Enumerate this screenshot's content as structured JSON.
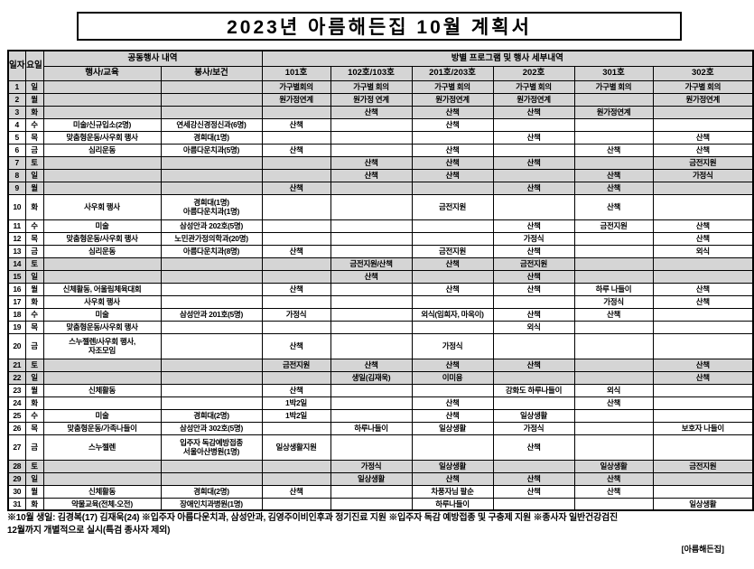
{
  "title": "2023년 아름해든집 10월 계획서",
  "table": {
    "corner_headers": {
      "date": "일자",
      "weekday": "요일"
    },
    "group_headers": {
      "common": "공동행사 내역",
      "rooms": "방별 프로그램 및 행사 세부내역"
    },
    "sub_headers": [
      "행사/교육",
      "봉사/보건",
      "101호",
      "102호/103호",
      "201호/203호",
      "202호",
      "301호",
      "302호"
    ],
    "rows": [
      {
        "date": 1,
        "weekday": "일",
        "highlight": true,
        "tall": false,
        "cells": [
          "",
          "",
          "가구별회의",
          "가구별 회의",
          "가구별 회의",
          "가구별 회의",
          "가구별 회의",
          "가구별 회의"
        ]
      },
      {
        "date": 2,
        "weekday": "월",
        "highlight": true,
        "tall": false,
        "cells": [
          "",
          "",
          "원가정연계",
          "원가정 연계",
          "원가정연계",
          "원가정연계",
          "",
          "원가정연계"
        ]
      },
      {
        "date": 3,
        "weekday": "화",
        "highlight": true,
        "tall": false,
        "cells": [
          "",
          "",
          "",
          "산책",
          "산책",
          "산책",
          "원가정연계",
          ""
        ]
      },
      {
        "date": 4,
        "weekday": "수",
        "highlight": false,
        "tall": false,
        "cells": [
          "미술/신규입소(2명)",
          "연세강신경정신과(6명)",
          "산책",
          "",
          "산책",
          "",
          "",
          ""
        ]
      },
      {
        "date": 5,
        "weekday": "목",
        "highlight": false,
        "tall": false,
        "cells": [
          "맞춤형운동/사우회 행사",
          "경희대(1명)",
          "",
          "",
          "",
          "산책",
          "",
          "산책"
        ]
      },
      {
        "date": 6,
        "weekday": "금",
        "highlight": false,
        "tall": false,
        "cells": [
          "심리운동",
          "아름다운치과(5명)",
          "산책",
          "",
          "산책",
          "",
          "산책",
          "산책"
        ]
      },
      {
        "date": 7,
        "weekday": "토",
        "highlight": true,
        "tall": false,
        "cells": [
          "",
          "",
          "",
          "산책",
          "산책",
          "산책",
          "",
          "금전지원"
        ]
      },
      {
        "date": 8,
        "weekday": "일",
        "highlight": true,
        "tall": false,
        "cells": [
          "",
          "",
          "",
          "산책",
          "산책",
          "",
          "산책",
          "가정식"
        ]
      },
      {
        "date": 9,
        "weekday": "월",
        "highlight": true,
        "tall": false,
        "cells": [
          "",
          "",
          "산책",
          "",
          "",
          "산책",
          "산책",
          ""
        ]
      },
      {
        "date": 10,
        "weekday": "화",
        "highlight": false,
        "tall": true,
        "cells": [
          "사우회 행사",
          "경희대(1명)\n아름다운치과(1명)",
          "",
          "",
          "금전지원",
          "",
          "산책",
          ""
        ]
      },
      {
        "date": 11,
        "weekday": "수",
        "highlight": false,
        "tall": false,
        "cells": [
          "미술",
          "삼성안과 202호(5명)",
          "",
          "",
          "",
          "산책",
          "금전지원",
          "산책"
        ]
      },
      {
        "date": 12,
        "weekday": "목",
        "highlight": false,
        "tall": false,
        "cells": [
          "맞춤형운동/사우회 행사",
          "노민관가정의학과(20명)",
          "",
          "",
          "",
          "가정식",
          "",
          "산책"
        ]
      },
      {
        "date": 13,
        "weekday": "금",
        "highlight": false,
        "tall": false,
        "cells": [
          "심리운동",
          "아름다운치과(8명)",
          "산책",
          "",
          "금전지원",
          "산책",
          "",
          "외식"
        ]
      },
      {
        "date": 14,
        "weekday": "토",
        "highlight": true,
        "tall": false,
        "cells": [
          "",
          "",
          "",
          "금전지원/산책",
          "산책",
          "금전지원",
          "",
          ""
        ]
      },
      {
        "date": 15,
        "weekday": "일",
        "highlight": true,
        "tall": false,
        "cells": [
          "",
          "",
          "",
          "산책",
          "",
          "산책",
          "",
          ""
        ]
      },
      {
        "date": 16,
        "weekday": "월",
        "highlight": false,
        "tall": false,
        "cells": [
          "신체활동, 어울림체육대회",
          "",
          "산책",
          "",
          "산책",
          "산책",
          "하루 나들이",
          "산책"
        ]
      },
      {
        "date": 17,
        "weekday": "화",
        "highlight": false,
        "tall": false,
        "cells": [
          "사우회 행사",
          "",
          "",
          "",
          "",
          "",
          "가정식",
          "산책"
        ]
      },
      {
        "date": 18,
        "weekday": "수",
        "highlight": false,
        "tall": false,
        "cells": [
          "미술",
          "삼성안과 201호(5명)",
          "가정식",
          "",
          "외식(임희자, 마옥이)",
          "산책",
          "산책",
          ""
        ]
      },
      {
        "date": 19,
        "weekday": "목",
        "highlight": false,
        "tall": false,
        "cells": [
          "맞춤형운동/사우회 행사",
          "",
          "",
          "",
          "",
          "외식",
          "",
          ""
        ]
      },
      {
        "date": 20,
        "weekday": "금",
        "highlight": false,
        "tall": true,
        "cells": [
          "스누젤렌/사우회 행사,\n자조모임",
          "",
          "산책",
          "",
          "가정식",
          "",
          "",
          ""
        ]
      },
      {
        "date": 21,
        "weekday": "토",
        "highlight": true,
        "tall": false,
        "cells": [
          "",
          "",
          "금전지원",
          "산책",
          "산책",
          "산책",
          "",
          "산책"
        ]
      },
      {
        "date": 22,
        "weekday": "일",
        "highlight": true,
        "tall": false,
        "cells": [
          "",
          "",
          "",
          "생일(김재욱)",
          "이미용",
          "",
          "",
          "산책"
        ]
      },
      {
        "date": 23,
        "weekday": "월",
        "highlight": false,
        "tall": false,
        "cells": [
          "신체활동",
          "",
          "산책",
          "",
          "",
          "강화도 하루나들이",
          "외식",
          ""
        ]
      },
      {
        "date": 24,
        "weekday": "화",
        "highlight": false,
        "tall": false,
        "cells": [
          "",
          "",
          "1박2일",
          "",
          "산책",
          "",
          "산책",
          ""
        ]
      },
      {
        "date": 25,
        "weekday": "수",
        "highlight": false,
        "tall": false,
        "cells": [
          "미술",
          "경희대(2명)",
          "1박2일",
          "",
          "산책",
          "일상생활",
          "",
          ""
        ]
      },
      {
        "date": 26,
        "weekday": "목",
        "highlight": false,
        "tall": false,
        "cells": [
          "맞춤형운동/가족나들이",
          "삼성안과 302호(5명)",
          "",
          "하루나들이",
          "일상생활",
          "가정식",
          "",
          "보호자 나들이"
        ]
      },
      {
        "date": 27,
        "weekday": "금",
        "highlight": false,
        "tall": true,
        "cells": [
          "스누젤렌",
          "입주자 독감예방접종\n서울아산병원(1명)",
          "일상생활지원",
          "",
          "",
          "산책",
          "",
          ""
        ]
      },
      {
        "date": 28,
        "weekday": "토",
        "highlight": true,
        "tall": false,
        "cells": [
          "",
          "",
          "",
          "가정식",
          "일상생활",
          "",
          "일상생활",
          "금전지원"
        ]
      },
      {
        "date": 29,
        "weekday": "일",
        "highlight": true,
        "tall": false,
        "cells": [
          "",
          "",
          "",
          "일상생활",
          "산책",
          "산책",
          "산책",
          ""
        ]
      },
      {
        "date": 30,
        "weekday": "월",
        "highlight": false,
        "tall": false,
        "cells": [
          "신체활동",
          "경희대(2명)",
          "산책",
          "",
          "차풍자님 팔순",
          "산책",
          "산책",
          ""
        ]
      },
      {
        "date": 31,
        "weekday": "화",
        "highlight": false,
        "tall": false,
        "cells": [
          "약물교육(전체-오전)",
          "장애인치과병원(1명)",
          "",
          "",
          "하루나들이",
          "",
          "",
          "일상생활"
        ]
      }
    ]
  },
  "footnote": "※10월 생일: 김경복(17) 김재욱(24)  ※입주자 아름다운치과, 삼성안과, 김영주이비인후과 정기진료 지원  ※입주자 독감 예방접종 및 구충제 지원  ※종사자 일반건강검진\n12월까지 개별적으로 실시(특검 종사자 제외)",
  "signature": "[아름해든집]",
  "colors": {
    "row_highlight": "#d5d5d5",
    "border": "#000000",
    "text": "#000000",
    "background": "#ffffff"
  }
}
